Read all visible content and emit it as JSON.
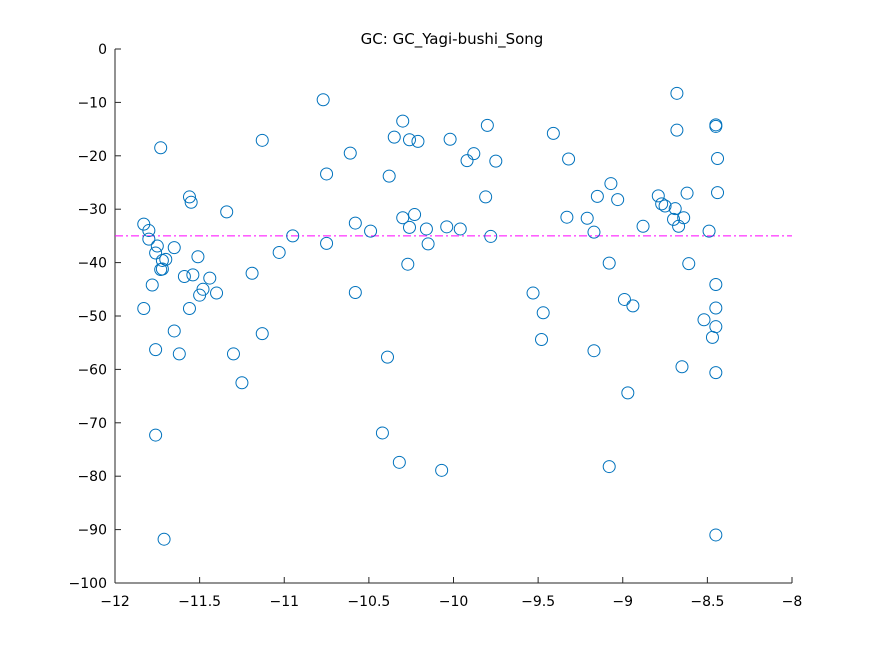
{
  "chart_data": {
    "type": "scatter",
    "title": "GC: GC_Yagi-bushi_Song",
    "xlabel": "",
    "ylabel": "",
    "xlim": [
      -12,
      -8
    ],
    "ylim": [
      -100,
      0
    ],
    "xticks": [
      -12,
      -11.5,
      -11,
      -10.5,
      -10,
      -9.5,
      -9,
      -8.5,
      -8
    ],
    "xtick_labels": [
      "−12",
      "−11.5",
      "−11",
      "−10.5",
      "−10",
      "−9.5",
      "−9",
      "−8.5",
      "−8"
    ],
    "yticks": [
      0,
      -10,
      -20,
      -30,
      -40,
      -50,
      -60,
      -70,
      -80,
      -90,
      -100
    ],
    "ytick_labels": [
      "0",
      "−10",
      "−20",
      "−30",
      "−40",
      "−50",
      "−60",
      "−70",
      "−80",
      "−90",
      "−100"
    ],
    "grid": false,
    "marker": "open-circle",
    "marker_color": "#0072BD",
    "reference_line": {
      "y": -35,
      "style": "dash-dot",
      "color": "#FF00FF"
    },
    "points": [
      [
        -11.83,
        -48.6
      ],
      [
        -11.83,
        -32.8
      ],
      [
        -11.8,
        -35.6
      ],
      [
        -11.8,
        -34.0
      ],
      [
        -11.78,
        -44.2
      ],
      [
        -11.76,
        -38.2
      ],
      [
        -11.76,
        -56.3
      ],
      [
        -11.76,
        -72.3
      ],
      [
        -11.75,
        -36.9
      ],
      [
        -11.73,
        -41.3
      ],
      [
        -11.73,
        -18.5
      ],
      [
        -11.72,
        -39.6
      ],
      [
        -11.72,
        -41.2
      ],
      [
        -11.71,
        -91.8
      ],
      [
        -11.7,
        -39.4
      ],
      [
        -11.65,
        -37.2
      ],
      [
        -11.65,
        -52.8
      ],
      [
        -11.62,
        -57.1
      ],
      [
        -11.59,
        -42.6
      ],
      [
        -11.56,
        -48.6
      ],
      [
        -11.56,
        -27.7
      ],
      [
        -11.55,
        -28.7
      ],
      [
        -11.54,
        -42.3
      ],
      [
        -11.51,
        -38.9
      ],
      [
        -11.5,
        -46.1
      ],
      [
        -11.48,
        -45.0
      ],
      [
        -11.44,
        -42.9
      ],
      [
        -11.4,
        -45.7
      ],
      [
        -11.34,
        -30.5
      ],
      [
        -11.3,
        -57.1
      ],
      [
        -11.25,
        -62.5
      ],
      [
        -11.19,
        -42.0
      ],
      [
        -11.13,
        -17.1
      ],
      [
        -11.13,
        -53.3
      ],
      [
        -11.03,
        -38.1
      ],
      [
        -10.95,
        -35.0
      ],
      [
        -10.77,
        -9.5
      ],
      [
        -10.75,
        -23.4
      ],
      [
        -10.75,
        -36.4
      ],
      [
        -10.61,
        -19.5
      ],
      [
        -10.58,
        -32.6
      ],
      [
        -10.58,
        -45.6
      ],
      [
        -10.49,
        -34.1
      ],
      [
        -10.42,
        -71.9
      ],
      [
        -10.39,
        -57.7
      ],
      [
        -10.38,
        -23.8
      ],
      [
        -10.35,
        -16.5
      ],
      [
        -10.32,
        -77.4
      ],
      [
        -10.3,
        -31.6
      ],
      [
        -10.3,
        -13.5
      ],
      [
        -10.27,
        -40.3
      ],
      [
        -10.26,
        -17.0
      ],
      [
        -10.26,
        -33.4
      ],
      [
        -10.23,
        -31.0
      ],
      [
        -10.21,
        -17.3
      ],
      [
        -10.16,
        -33.7
      ],
      [
        -10.15,
        -36.5
      ],
      [
        -10.07,
        -78.9
      ],
      [
        -10.04,
        -33.3
      ],
      [
        -10.02,
        -16.9
      ],
      [
        -9.96,
        -33.7
      ],
      [
        -9.92,
        -20.9
      ],
      [
        -9.88,
        -19.6
      ],
      [
        -9.81,
        -27.7
      ],
      [
        -9.8,
        -14.3
      ],
      [
        -9.78,
        -35.1
      ],
      [
        -9.75,
        -21.0
      ],
      [
        -9.53,
        -45.7
      ],
      [
        -9.48,
        -54.4
      ],
      [
        -9.47,
        -49.4
      ],
      [
        -9.41,
        -15.8
      ],
      [
        -9.33,
        -31.5
      ],
      [
        -9.32,
        -20.6
      ],
      [
        -9.21,
        -31.7
      ],
      [
        -9.17,
        -34.3
      ],
      [
        -9.17,
        -56.5
      ],
      [
        -9.15,
        -27.6
      ],
      [
        -9.08,
        -40.1
      ],
      [
        -9.08,
        -78.2
      ],
      [
        -9.07,
        -25.2
      ],
      [
        -9.03,
        -28.2
      ],
      [
        -8.99,
        -46.9
      ],
      [
        -8.97,
        -64.4
      ],
      [
        -8.94,
        -48.1
      ],
      [
        -8.88,
        -33.2
      ],
      [
        -8.79,
        -27.5
      ],
      [
        -8.77,
        -29.0
      ],
      [
        -8.75,
        -29.4
      ],
      [
        -8.7,
        -31.9
      ],
      [
        -8.69,
        -29.9
      ],
      [
        -8.68,
        -15.2
      ],
      [
        -8.68,
        -8.3
      ],
      [
        -8.67,
        -33.2
      ],
      [
        -8.65,
        -59.5
      ],
      [
        -8.64,
        -31.6
      ],
      [
        -8.62,
        -27.0
      ],
      [
        -8.61,
        -40.2
      ],
      [
        -8.52,
        -50.7
      ],
      [
        -8.49,
        -34.1
      ],
      [
        -8.47,
        -54.0
      ],
      [
        -8.45,
        -14.2
      ],
      [
        -8.45,
        -44.1
      ],
      [
        -8.45,
        -14.5
      ],
      [
        -8.45,
        -48.5
      ],
      [
        -8.45,
        -52.0
      ],
      [
        -8.45,
        -60.6
      ],
      [
        -8.44,
        -20.5
      ],
      [
        -8.44,
        -26.9
      ],
      [
        -8.45,
        -91.0
      ]
    ]
  }
}
